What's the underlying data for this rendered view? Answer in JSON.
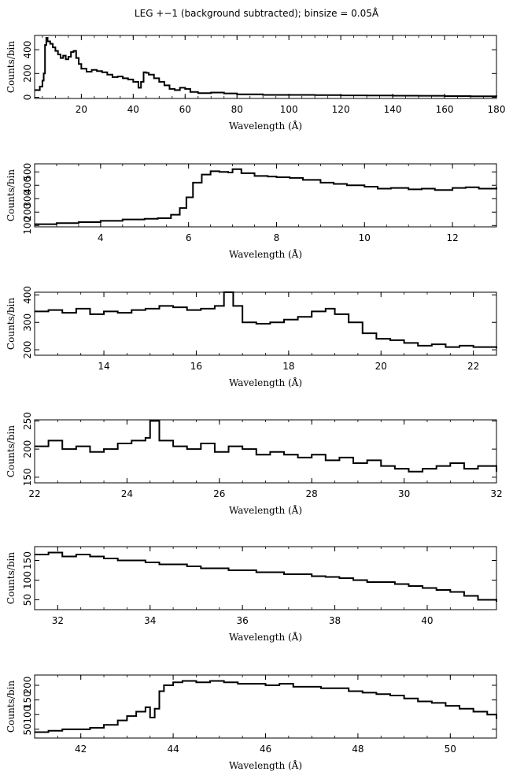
{
  "figure": {
    "title": "LEG +−1 (background subtracted); binsize = 0.05Å"
  },
  "chart_data": [
    {
      "type": "line",
      "xlabel": "Wavelength (Å)",
      "ylabel": "Counts/bin",
      "xlim": [
        2,
        180
      ],
      "ylim": [
        -10,
        520
      ],
      "xticks": [
        20,
        40,
        60,
        80,
        100,
        120,
        140,
        160,
        180
      ],
      "yticks": [
        0,
        200,
        400
      ],
      "series": [
        {
          "x": [
            2,
            4,
            5,
            5.5,
            6,
            6.5,
            7,
            8,
            9,
            10,
            11,
            12,
            13,
            14,
            15,
            16,
            17,
            18,
            19,
            20,
            22,
            24,
            26,
            28,
            30,
            32,
            34,
            36,
            38,
            40,
            42,
            43,
            44,
            45,
            46,
            48,
            50,
            52,
            54,
            56,
            58,
            60,
            62,
            65,
            70,
            75,
            80,
            90,
            100,
            110,
            120,
            130,
            140,
            150,
            160,
            170,
            180
          ],
          "y": [
            60,
            90,
            140,
            200,
            440,
            500,
            470,
            450,
            420,
            390,
            360,
            330,
            350,
            320,
            340,
            380,
            390,
            330,
            280,
            240,
            215,
            230,
            220,
            210,
            190,
            170,
            175,
            160,
            150,
            130,
            80,
            130,
            210,
            205,
            190,
            160,
            130,
            100,
            70,
            60,
            80,
            70,
            45,
            35,
            40,
            32,
            25,
            20,
            20,
            18,
            16,
            15,
            13,
            12,
            10,
            8,
            5
          ]
        }
      ]
    },
    {
      "type": "line",
      "xlabel": "Wavelength (Å)",
      "ylabel": "Counts/bin",
      "xlim": [
        2.5,
        13
      ],
      "ylim": [
        90,
        560
      ],
      "xticks": [
        4,
        6,
        8,
        10,
        12
      ],
      "yticks": [
        100,
        200,
        300,
        400,
        500
      ],
      "series": [
        {
          "x": [
            2.5,
            3.0,
            3.5,
            4.0,
            4.5,
            5.0,
            5.3,
            5.6,
            5.8,
            5.95,
            6.1,
            6.3,
            6.5,
            6.7,
            6.9,
            7.0,
            7.2,
            7.5,
            7.8,
            8.0,
            8.3,
            8.6,
            9.0,
            9.3,
            9.6,
            10.0,
            10.3,
            10.6,
            11.0,
            11.3,
            11.6,
            12.0,
            12.3,
            12.6,
            13.0
          ],
          "y": [
            110,
            118,
            125,
            135,
            145,
            150,
            155,
            180,
            230,
            310,
            420,
            480,
            505,
            500,
            495,
            520,
            490,
            470,
            465,
            460,
            455,
            440,
            420,
            410,
            400,
            390,
            375,
            380,
            370,
            375,
            365,
            380,
            385,
            375,
            385
          ]
        }
      ]
    },
    {
      "type": "line",
      "xlabel": "Wavelength (Å)",
      "ylabel": "Counts/bin",
      "xlim": [
        12.5,
        22.5
      ],
      "ylim": [
        180,
        410
      ],
      "xticks": [
        14,
        16,
        18,
        20,
        22
      ],
      "yticks": [
        200,
        300,
        400
      ],
      "series": [
        {
          "x": [
            12.5,
            12.8,
            13.1,
            13.4,
            13.7,
            14.0,
            14.3,
            14.6,
            14.9,
            15.2,
            15.5,
            15.8,
            16.1,
            16.4,
            16.6,
            16.8,
            17.0,
            17.3,
            17.6,
            17.9,
            18.2,
            18.5,
            18.8,
            19.0,
            19.3,
            19.6,
            19.9,
            20.2,
            20.5,
            20.8,
            21.1,
            21.4,
            21.7,
            22.0,
            22.5
          ],
          "y": [
            340,
            345,
            335,
            350,
            330,
            340,
            335,
            345,
            350,
            360,
            355,
            345,
            350,
            360,
            420,
            360,
            300,
            295,
            300,
            310,
            320,
            340,
            350,
            330,
            300,
            260,
            240,
            235,
            225,
            215,
            220,
            210,
            215,
            210,
            205
          ]
        }
      ]
    },
    {
      "type": "line",
      "xlabel": "Wavelength (Å)",
      "ylabel": "Counts/bin",
      "xlim": [
        22,
        32
      ],
      "ylim": [
        140,
        252
      ],
      "xticks": [
        22,
        24,
        26,
        28,
        30,
        32
      ],
      "yticks": [
        150,
        200,
        250
      ],
      "series": [
        {
          "x": [
            22.0,
            22.3,
            22.6,
            22.9,
            23.2,
            23.5,
            23.8,
            24.1,
            24.4,
            24.5,
            24.7,
            25.0,
            25.3,
            25.6,
            25.9,
            26.2,
            26.5,
            26.8,
            27.1,
            27.4,
            27.7,
            28.0,
            28.3,
            28.6,
            28.9,
            29.2,
            29.5,
            29.8,
            30.1,
            30.4,
            30.7,
            31.0,
            31.3,
            31.6,
            32.0
          ],
          "y": [
            205,
            215,
            200,
            205,
            195,
            200,
            210,
            215,
            220,
            250,
            215,
            205,
            200,
            210,
            195,
            205,
            200,
            190,
            195,
            190,
            185,
            190,
            180,
            185,
            175,
            180,
            170,
            165,
            160,
            165,
            170,
            175,
            165,
            170,
            160
          ]
        }
      ]
    },
    {
      "type": "line",
      "xlabel": "Wavelength (Å)",
      "ylabel": "Counts/bin",
      "xlim": [
        31.5,
        41.5
      ],
      "ylim": [
        25,
        185
      ],
      "xticks": [
        32,
        34,
        36,
        38,
        40
      ],
      "yticks": [
        50,
        100,
        150
      ],
      "series": [
        {
          "x": [
            31.5,
            31.8,
            32.1,
            32.4,
            32.7,
            33.0,
            33.3,
            33.6,
            33.9,
            34.2,
            34.5,
            34.8,
            35.1,
            35.4,
            35.7,
            36.0,
            36.3,
            36.6,
            36.9,
            37.2,
            37.5,
            37.8,
            38.1,
            38.4,
            38.7,
            39.0,
            39.3,
            39.6,
            39.9,
            40.2,
            40.5,
            40.8,
            41.1,
            41.5
          ],
          "y": [
            165,
            170,
            160,
            165,
            160,
            155,
            150,
            150,
            145,
            140,
            140,
            135,
            130,
            130,
            125,
            125,
            120,
            120,
            115,
            115,
            110,
            108,
            105,
            100,
            95,
            95,
            90,
            85,
            80,
            75,
            70,
            60,
            50,
            45
          ]
        }
      ]
    },
    {
      "type": "line",
      "xlabel": "Wavelength (Å)",
      "ylabel": "Counts/bin",
      "xlim": [
        41,
        51
      ],
      "ylim": [
        20,
        235
      ],
      "xticks": [
        42,
        44,
        46,
        48,
        50
      ],
      "yticks": [
        50,
        100,
        150,
        200
      ],
      "series": [
        {
          "x": [
            41.0,
            41.3,
            41.6,
            41.9,
            42.2,
            42.5,
            42.8,
            43.0,
            43.2,
            43.4,
            43.5,
            43.6,
            43.7,
            43.8,
            44.0,
            44.2,
            44.5,
            44.8,
            45.1,
            45.4,
            45.7,
            46.0,
            46.3,
            46.6,
            46.9,
            47.2,
            47.5,
            47.8,
            48.1,
            48.4,
            48.7,
            49.0,
            49.3,
            49.6,
            49.9,
            50.2,
            50.5,
            50.8,
            51.0
          ],
          "y": [
            40,
            45,
            50,
            50,
            55,
            65,
            80,
            95,
            110,
            125,
            90,
            120,
            180,
            200,
            210,
            215,
            210,
            215,
            210,
            205,
            205,
            200,
            205,
            195,
            195,
            190,
            190,
            180,
            175,
            170,
            165,
            155,
            145,
            140,
            130,
            120,
            110,
            100,
            85
          ]
        }
      ]
    }
  ]
}
